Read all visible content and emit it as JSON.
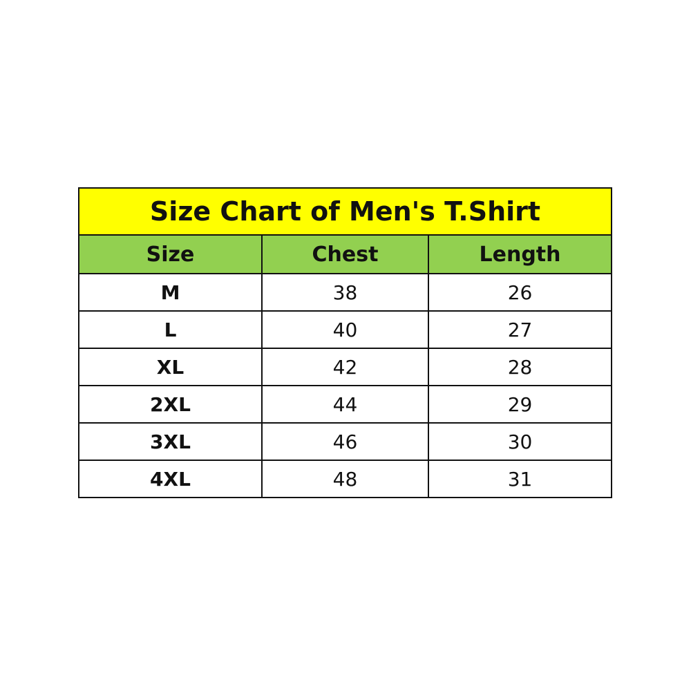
{
  "title": "Size Chart of Men's T.Shirt",
  "colors": {
    "title_bg": "#ffff00",
    "header_bg": "#92d050"
  },
  "headers": [
    "Size",
    "Chest",
    "Length"
  ],
  "rows": [
    [
      "M",
      "38",
      "26"
    ],
    [
      "L",
      "40",
      "27"
    ],
    [
      "XL",
      "42",
      "28"
    ],
    [
      "2XL",
      "44",
      "29"
    ],
    [
      "3XL",
      "46",
      "30"
    ],
    [
      "4XL",
      "48",
      "31"
    ]
  ]
}
